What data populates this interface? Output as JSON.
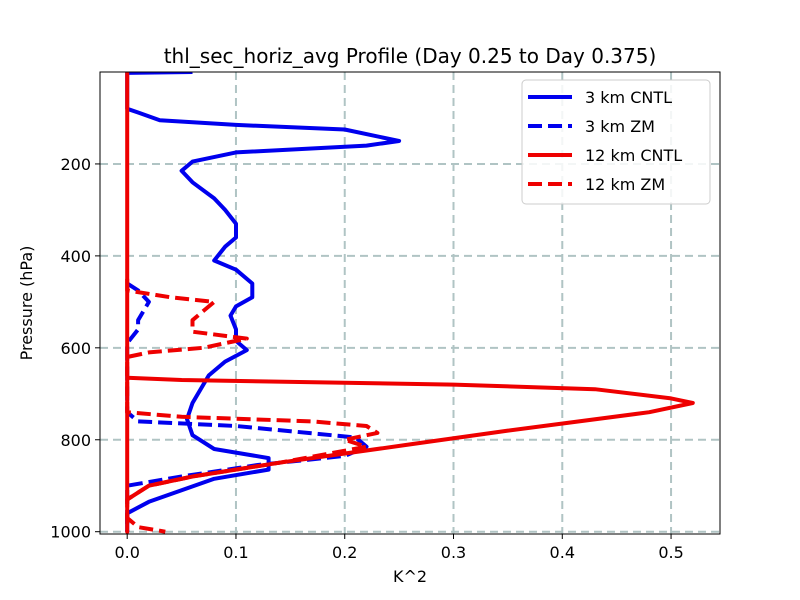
{
  "chart_data": {
    "type": "line",
    "title": "thl_sec_horiz_avg Profile (Day 0.25 to Day 0.375)",
    "xlabel": "K^2",
    "ylabel": "Pressure (hPa)",
    "xlim": [
      -0.025,
      0.545
    ],
    "ylim": [
      1005,
      0
    ],
    "y_inverted": true,
    "x_ticks": [
      0.0,
      0.1,
      0.2,
      0.3,
      0.4,
      0.5
    ],
    "x_tick_labels": [
      "0.0",
      "0.1",
      "0.2",
      "0.3",
      "0.4",
      "0.5"
    ],
    "y_ticks": [
      200,
      400,
      600,
      800,
      1000
    ],
    "y_tick_labels": [
      "200",
      "400",
      "600",
      "800",
      "1000"
    ],
    "grid": true,
    "legend_position": "top-right",
    "series": [
      {
        "name": "3 km CNTL",
        "color": "#0000ee",
        "dash": "solid",
        "points": [
          [
            0.06,
            0
          ],
          [
            0.0,
            2
          ],
          [
            0.0,
            80
          ],
          [
            0.01,
            88
          ],
          [
            0.03,
            105
          ],
          [
            0.1,
            115
          ],
          [
            0.2,
            125
          ],
          [
            0.25,
            150
          ],
          [
            0.22,
            160
          ],
          [
            0.1,
            175
          ],
          [
            0.06,
            195
          ],
          [
            0.05,
            215
          ],
          [
            0.06,
            240
          ],
          [
            0.08,
            275
          ],
          [
            0.09,
            300
          ],
          [
            0.1,
            330
          ],
          [
            0.1,
            360
          ],
          [
            0.09,
            380
          ],
          [
            0.08,
            410
          ],
          [
            0.1,
            430
          ],
          [
            0.115,
            460
          ],
          [
            0.115,
            490
          ],
          [
            0.1,
            510
          ],
          [
            0.095,
            530
          ],
          [
            0.1,
            560
          ],
          [
            0.1,
            585
          ],
          [
            0.11,
            605
          ],
          [
            0.09,
            630
          ],
          [
            0.075,
            660
          ],
          [
            0.06,
            720
          ],
          [
            0.055,
            755
          ],
          [
            0.06,
            790
          ],
          [
            0.08,
            820
          ],
          [
            0.13,
            840
          ],
          [
            0.13,
            865
          ],
          [
            0.08,
            885
          ],
          [
            0.05,
            910
          ],
          [
            0.02,
            935
          ],
          [
            0.0,
            960
          ],
          [
            0.0,
            1000
          ]
        ]
      },
      {
        "name": "3 km ZM",
        "color": "#0000ee",
        "dash": "dashed",
        "points": [
          [
            0.0,
            460
          ],
          [
            0.01,
            475
          ],
          [
            0.02,
            500
          ],
          [
            0.01,
            540
          ],
          [
            0.01,
            560
          ],
          [
            0.0,
            590
          ],
          [
            0.0,
            615
          ],
          [
            0.0,
            740
          ],
          [
            0.01,
            760
          ],
          [
            0.1,
            770
          ],
          [
            0.21,
            795
          ],
          [
            0.22,
            815
          ],
          [
            0.2,
            835
          ],
          [
            0.12,
            855
          ],
          [
            0.05,
            880
          ],
          [
            0.0,
            900
          ],
          [
            0.0,
            1000
          ]
        ]
      },
      {
        "name": "12 km CNTL",
        "color": "#ee0000",
        "dash": "solid",
        "points": [
          [
            0.0,
            0
          ],
          [
            0.0,
            1000
          ],
          [
            0.0,
            665
          ],
          [
            0.05,
            670
          ],
          [
            0.3,
            680
          ],
          [
            0.43,
            690
          ],
          [
            0.5,
            710
          ],
          [
            0.52,
            720
          ],
          [
            0.48,
            740
          ],
          [
            0.35,
            780
          ],
          [
            0.26,
            810
          ],
          [
            0.14,
            850
          ],
          [
            0.06,
            880
          ],
          [
            0.02,
            900
          ],
          [
            0.0,
            930
          ],
          [
            0.0,
            1000
          ]
        ]
      },
      {
        "name": "12 km ZM",
        "color": "#ee0000",
        "dash": "dashed",
        "points": [
          [
            0.0,
            450
          ],
          [
            0.0,
            475
          ],
          [
            0.04,
            490
          ],
          [
            0.08,
            500
          ],
          [
            0.07,
            520
          ],
          [
            0.06,
            540
          ],
          [
            0.06,
            565
          ],
          [
            0.11,
            580
          ],
          [
            0.07,
            600
          ],
          [
            0.02,
            610
          ],
          [
            0.0,
            620
          ],
          [
            0.0,
            740
          ],
          [
            0.05,
            750
          ],
          [
            0.17,
            760
          ],
          [
            0.22,
            770
          ],
          [
            0.23,
            785
          ],
          [
            0.2,
            800
          ],
          [
            0.22,
            815
          ],
          [
            0.14,
            850
          ],
          [
            0.06,
            880
          ],
          [
            0.02,
            900
          ],
          [
            0.0,
            930
          ],
          [
            0.0,
            970
          ],
          [
            0.01,
            990
          ],
          [
            0.035,
            1000
          ]
        ]
      }
    ]
  }
}
